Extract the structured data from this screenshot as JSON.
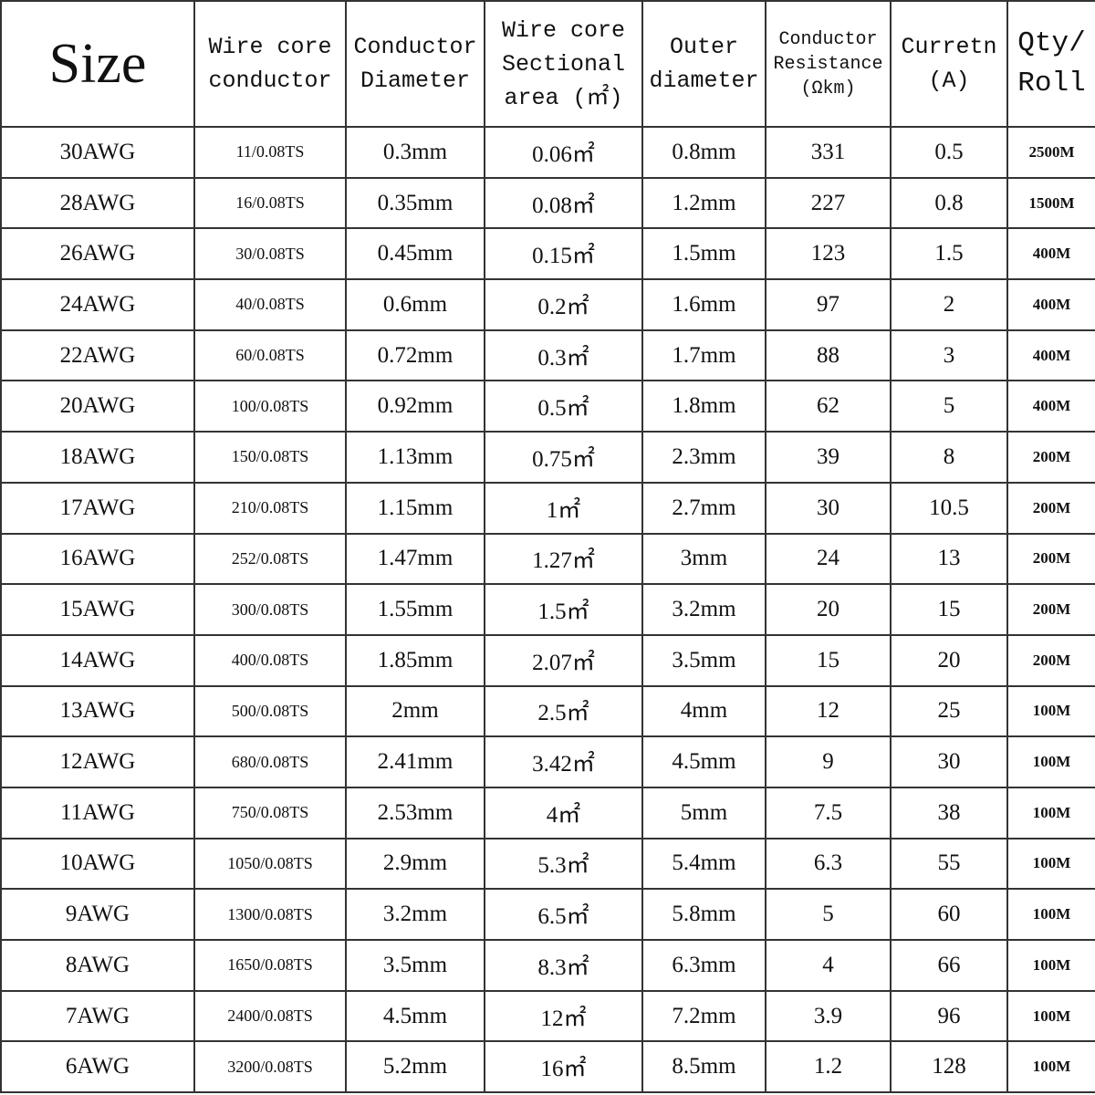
{
  "table": {
    "headers": [
      [
        "Size"
      ],
      [
        "Wire core",
        "conductor"
      ],
      [
        "Conductor",
        "Diameter"
      ],
      [
        "Wire core",
        "Sectional",
        "area (㎡)"
      ],
      [
        "Outer",
        "diameter"
      ],
      [
        "Conductor",
        "Resistance",
        "(Ωkm)"
      ],
      [
        "Curretn",
        "(A)"
      ],
      [
        "Qty/",
        "Roll"
      ]
    ],
    "rows": [
      [
        "30AWG",
        "11/0.08TS",
        "0.3mm",
        "0.06㎡",
        "0.8mm",
        "331",
        "0.5",
        "2500M"
      ],
      [
        "28AWG",
        "16/0.08TS",
        "0.35mm",
        "0.08㎡",
        "1.2mm",
        "227",
        "0.8",
        "1500M"
      ],
      [
        "26AWG",
        "30/0.08TS",
        "0.45mm",
        "0.15㎡",
        "1.5mm",
        "123",
        "1.5",
        "400M"
      ],
      [
        "24AWG",
        "40/0.08TS",
        "0.6mm",
        "0.2㎡",
        "1.6mm",
        "97",
        "2",
        "400M"
      ],
      [
        "22AWG",
        "60/0.08TS",
        "0.72mm",
        "0.3㎡",
        "1.7mm",
        "88",
        "3",
        "400M"
      ],
      [
        "20AWG",
        "100/0.08TS",
        "0.92mm",
        "0.5㎡",
        "1.8mm",
        "62",
        "5",
        "400M"
      ],
      [
        "18AWG",
        "150/0.08TS",
        "1.13mm",
        "0.75㎡",
        "2.3mm",
        "39",
        "8",
        "200M"
      ],
      [
        "17AWG",
        "210/0.08TS",
        "1.15mm",
        "1㎡",
        "2.7mm",
        "30",
        "10.5",
        "200M"
      ],
      [
        "16AWG",
        "252/0.08TS",
        "1.47mm",
        "1.27㎡",
        "3mm",
        "24",
        "13",
        "200M"
      ],
      [
        "15AWG",
        "300/0.08TS",
        "1.55mm",
        "1.5㎡",
        "3.2mm",
        "20",
        "15",
        "200M"
      ],
      [
        "14AWG",
        "400/0.08TS",
        "1.85mm",
        "2.07㎡",
        "3.5mm",
        "15",
        "20",
        "200M"
      ],
      [
        "13AWG",
        "500/0.08TS",
        "2mm",
        "2.5㎡",
        "4mm",
        "12",
        "25",
        "100M"
      ],
      [
        "12AWG",
        "680/0.08TS",
        "2.41mm",
        "3.42㎡",
        "4.5mm",
        "9",
        "30",
        "100M"
      ],
      [
        "11AWG",
        "750/0.08TS",
        "2.53mm",
        "4㎡",
        "5mm",
        "7.5",
        "38",
        "100M"
      ],
      [
        "10AWG",
        "1050/0.08TS",
        "2.9mm",
        "5.3㎡",
        "5.4mm",
        "6.3",
        "55",
        "100M"
      ],
      [
        "9AWG",
        "1300/0.08TS",
        "3.2mm",
        "6.5㎡",
        "5.8mm",
        "5",
        "60",
        "100M"
      ],
      [
        "8AWG",
        "1650/0.08TS",
        "3.5mm",
        "8.3㎡",
        "6.3mm",
        "4",
        "66",
        "100M"
      ],
      [
        "7AWG",
        "2400/0.08TS",
        "4.5mm",
        "12㎡",
        "7.2mm",
        "3.9",
        "96",
        "100M"
      ],
      [
        "6AWG",
        "3200/0.08TS",
        "5.2mm",
        "16㎡",
        "8.5mm",
        "1.2",
        "128",
        "100M"
      ]
    ]
  }
}
